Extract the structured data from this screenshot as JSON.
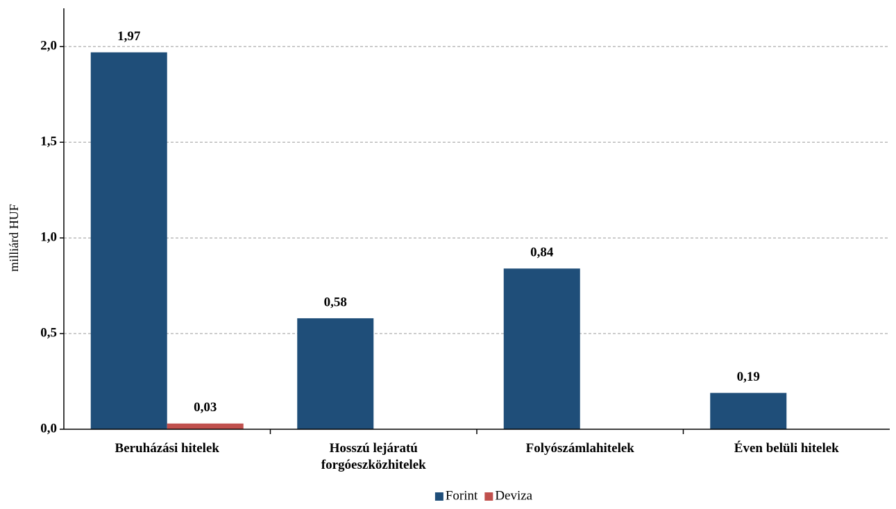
{
  "chart_data": {
    "type": "bar",
    "y_label": "milliárd HUF",
    "categories": [
      "Beruházási hitelek",
      "Hosszú lejáratú forgóeszközhitelek",
      "Folyószámlahitelek",
      "Éven belüli hitelek"
    ],
    "series": [
      {
        "name": "Forint",
        "color": "#1f4e79",
        "values": [
          1.97,
          0.58,
          0.84,
          0.19
        ],
        "value_labels": [
          "1,97",
          "0,58",
          "0,84",
          "0,19"
        ]
      },
      {
        "name": "Deviza",
        "color": "#c0504d",
        "values": [
          0.03,
          null,
          null,
          null
        ],
        "value_labels": [
          "0,03",
          null,
          null,
          null
        ]
      }
    ],
    "ylim": [
      0,
      2.2
    ],
    "yticks": [
      {
        "value": 0,
        "label": "0,0"
      },
      {
        "value": 0.5,
        "label": "0,5"
      },
      {
        "value": 1,
        "label": "1,0"
      },
      {
        "value": 1.5,
        "label": "1,5"
      },
      {
        "value": 2,
        "label": "2,0"
      }
    ],
    "grid": true,
    "legend": "bottom"
  }
}
